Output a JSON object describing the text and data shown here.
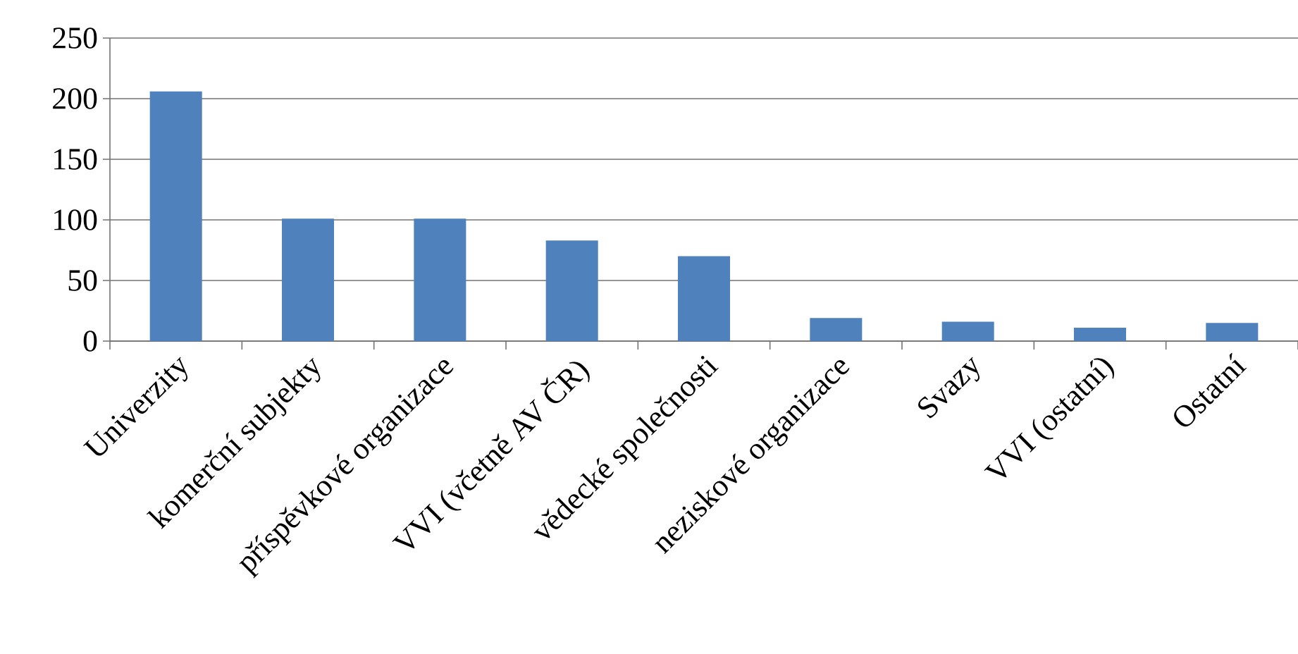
{
  "chart_data": {
    "type": "bar",
    "categories": [
      "Univerzity",
      "komerční subjekty",
      "příspěvkové organizace",
      "VVI (včetně AV ČR)",
      "vědecké společnosti",
      "neziskové organizace",
      "Svazy",
      "VVI (ostatní)",
      "Ostatní"
    ],
    "values": [
      206,
      101,
      101,
      83,
      70,
      19,
      16,
      11,
      15
    ],
    "color": "#4f81bd",
    "ylim": [
      0,
      250
    ],
    "yticks": [
      0,
      50,
      100,
      150,
      200,
      250
    ],
    "grid": "y"
  }
}
